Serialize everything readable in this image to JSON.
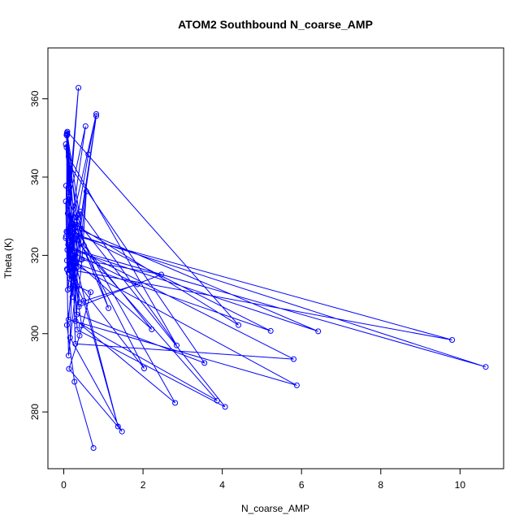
{
  "chart_data": {
    "type": "line",
    "title": "ATOM2 Southbound N_coarse_AMP",
    "xlabel": "N_coarse_AMP",
    "ylabel": "Theta (K)",
    "xlim": [
      -0.4,
      11.1
    ],
    "ylim": [
      265.5,
      373.0
    ],
    "x_ticks": [
      0,
      2,
      4,
      6,
      8,
      10
    ],
    "y_ticks": [
      280,
      300,
      320,
      340,
      360
    ],
    "grid": false,
    "legend": "none",
    "color": "#0000ff",
    "marker": "open-circle",
    "series": [
      {
        "x": [
          0.75,
          0.27,
          0.08,
          0.45,
          0.14,
          0.37,
          0.09,
          1.37,
          0.5,
          0.23,
          0.1,
          2.81,
          0.45,
          0.2,
          0.12,
          0.55,
          0.18,
          0.82,
          0.62,
          0.15,
          0.09,
          1.86,
          0.4,
          0.22,
          0.14,
          3.55,
          0.33,
          0.07,
          0.11,
          5.8,
          0.29,
          0.17,
          0.26,
          4.07,
          0.34,
          0.19,
          0.38,
          2.46,
          0.44,
          0.08,
          0.13,
          1.13,
          0.23,
          0.12,
          0.07,
          0.36,
          0.1,
          0.06,
          0.2,
          6.42,
          0.16,
          0.09,
          0.51,
          2.22,
          0.31,
          0.21,
          0.08,
          9.8,
          0.18,
          0.05,
          0.12,
          2.85,
          0.42,
          0.14,
          0.16,
          0.05,
          0.36,
          0.08,
          0.07,
          10.65,
          0.15,
          0.22,
          0.28,
          3.87,
          0.3,
          0.46,
          0.57,
          0.12,
          0.05,
          0.29,
          0.08,
          5.88,
          0.12,
          0.24,
          0.09,
          4.41,
          0.28,
          0.16,
          0.82,
          0.25,
          0.06,
          0.19,
          5.22,
          0.17,
          0.09,
          2.03,
          0.33,
          0.27,
          0.68,
          0.4,
          0.13,
          1.47,
          0.16,
          0.24
        ],
        "y": [
          270.8,
          287.7,
          302.2,
          326.8,
          336.1,
          362.8,
          325.9,
          276.3,
          308.4,
          314.2,
          330.7,
          282.3,
          302.1,
          319.2,
          333.4,
          353.0,
          327.2,
          356.1,
          345.8,
          318.5,
          321.4,
          312.6,
          308.0,
          325.7,
          343.1,
          292.5,
          304.9,
          350.8,
          322.7,
          293.5,
          297.4,
          338.2,
          329.6,
          281.3,
          301.0,
          325.2,
          306.9,
          315.1,
          318.9,
          351.3,
          334.3,
          306.5,
          328.1,
          315.5,
          347.6,
          330.3,
          311.2,
          337.8,
          327.4,
          300.6,
          321.6,
          351.0,
          322.5,
          301.1,
          318.4,
          324.9,
          316.5,
          298.4,
          325.3,
          348.4,
          345.3,
          297.0,
          331.2,
          323.2,
          314.0,
          324.4,
          317.1,
          350.6,
          326.1,
          291.5,
          321.8,
          309.4,
          324.2,
          282.9,
          303.2,
          319.0,
          336.3,
          294.4,
          333.8,
          327.0,
          318.7,
          286.8,
          303.6,
          318.1,
          351.6,
          302.2,
          327.9,
          311.5,
          355.6,
          314.7,
          324.9,
          318.3,
          300.7,
          326.4,
          316.3,
          291.1,
          325.0,
          312.4,
          310.6,
          299.5,
          291.0,
          275.0,
          299.0,
          323.8
        ]
      }
    ]
  }
}
